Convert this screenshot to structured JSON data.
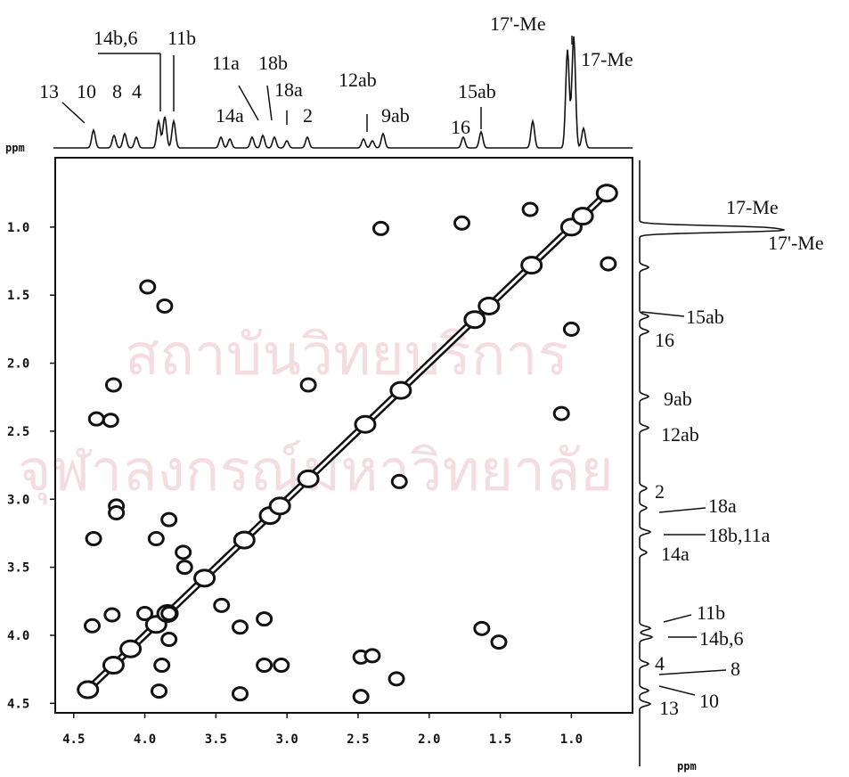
{
  "chart_data": {
    "type": "scatter",
    "x_label": "ppm",
    "y_label": "ppm",
    "xlim": [
      4.63,
      0.57
    ],
    "ylim": [
      0.49,
      4.57
    ],
    "xticks": [
      4.5,
      {
        "value": 4,
        "label": "4.0"
      },
      3.5,
      {
        "value": 3,
        "label": "3.0"
      },
      2.5,
      {
        "value": 2,
        "label": "2.0"
      },
      1.5,
      {
        "value": 1,
        "label": "1.0"
      }
    ],
    "yticks": [
      {
        "value": 1,
        "label": "1.0"
      },
      1.5,
      {
        "value": 2,
        "label": "2.0"
      },
      2.5,
      {
        "value": 3,
        "label": "3.0"
      },
      3.5,
      {
        "value": 4,
        "label": "4.0"
      },
      4.5
    ],
    "series": [
      {
        "color": "#111111",
        "x": [
          2.34,
          1.77,
          1.29,
          0.74,
          3.98,
          3.86,
          1.0,
          4.22,
          4.34,
          4.24,
          2.85,
          1.07,
          2.21,
          4.2,
          4.2,
          3.83,
          3.92,
          4.36,
          3.73,
          3.72,
          3.46,
          3.33,
          3.16,
          4.23,
          4.37,
          4.0,
          3.83,
          3.83,
          1.63,
          1.51,
          3.16,
          3.04,
          2.48,
          2.4,
          2.23,
          3.88,
          3.9,
          3.33,
          2.48
        ],
        "values": [
          1.01,
          0.97,
          0.87,
          1.27,
          1.44,
          1.58,
          1.75,
          2.16,
          2.41,
          2.42,
          2.16,
          2.37,
          2.87,
          3.05,
          3.1,
          3.15,
          3.29,
          3.29,
          3.39,
          3.5,
          3.78,
          3.94,
          3.88,
          3.85,
          3.93,
          3.84,
          3.84,
          4.03,
          3.95,
          4.05,
          4.22,
          4.22,
          4.16,
          4.15,
          4.32,
          4.22,
          4.41,
          4.43,
          4.45
        ]
      },
      {
        "color": "#111111",
        "x": [
          4.4,
          4.22,
          4.1,
          3.92,
          3.84,
          3.58,
          3.3,
          3.12,
          3.05,
          2.85,
          2.45,
          2.2,
          1.68,
          1.58,
          1.28,
          1.0,
          0.92,
          0.75
        ],
        "values": [
          4.4,
          4.22,
          4.1,
          3.92,
          3.84,
          3.58,
          3.3,
          3.12,
          3.05,
          2.85,
          2.45,
          2.2,
          1.68,
          1.58,
          1.28,
          1.0,
          0.92,
          0.75
        ]
      }
    ],
    "top_labels": [
      "13",
      "10",
      "8",
      "4",
      "14b,6",
      "11b",
      "11a",
      "18b",
      "14a",
      "18a",
      "2",
      "12ab",
      "9ab",
      "15ab",
      "16",
      "17'-Me",
      "17-Me"
    ],
    "right_labels": [
      "17-Me",
      "17'-Me",
      "15ab",
      "16",
      "9ab",
      "12ab",
      "2",
      "18a",
      "18b,11a",
      "14a",
      "11b",
      "14b,6",
      "4",
      "8",
      "10",
      "13"
    ]
  },
  "watermark": [
    "สถาบันวิทยบริการ",
    "จุฬาลงกรณ์มหาวิทยาลัย"
  ]
}
